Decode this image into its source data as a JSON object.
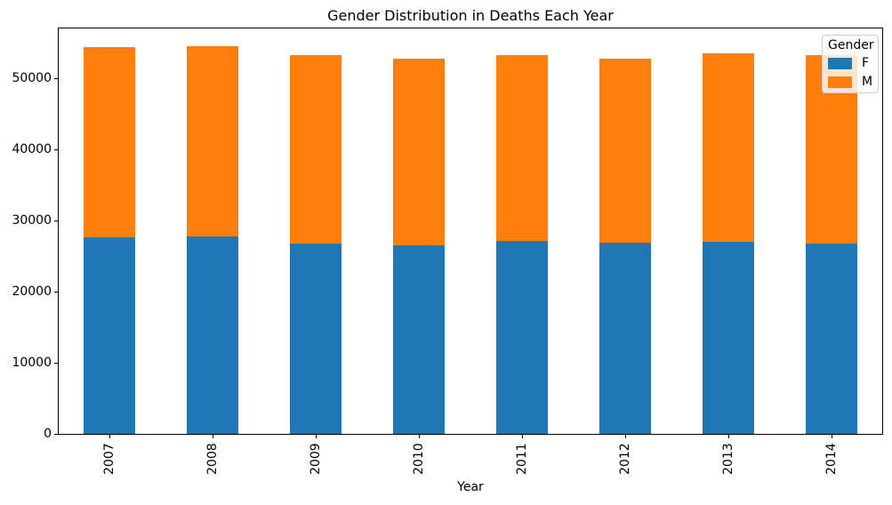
{
  "chart_data": {
    "type": "bar",
    "stacked": true,
    "title": "Gender Distribution in Deaths Each Year",
    "xlabel": "Year",
    "ylabel": "",
    "categories": [
      "2007",
      "2008",
      "2009",
      "2010",
      "2011",
      "2012",
      "2013",
      "2014"
    ],
    "series": [
      {
        "name": "F",
        "color": "#1f77b4",
        "values": [
          27600,
          27750,
          26750,
          26450,
          27100,
          26850,
          27000,
          26800
        ]
      },
      {
        "name": "M",
        "color": "#ff7f0e",
        "values": [
          26800,
          26800,
          26450,
          26300,
          26100,
          25950,
          26500,
          26400
        ]
      }
    ],
    "ylim": [
      0,
      57250
    ],
    "yticks": [
      0,
      10000,
      20000,
      30000,
      40000,
      50000
    ],
    "x_tick_rotation": 90,
    "bar_width_fraction": 0.5,
    "grid": false,
    "legend": {
      "title": "Gender",
      "position": "upper right"
    }
  }
}
